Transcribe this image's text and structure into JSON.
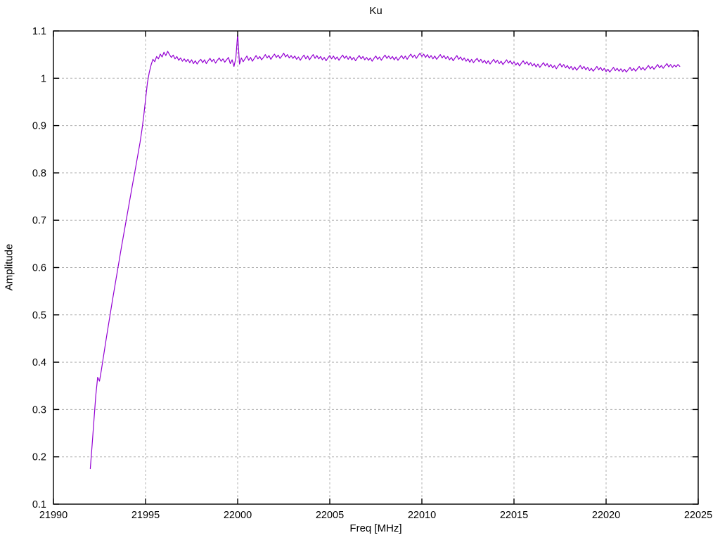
{
  "chart_data": {
    "type": "line",
    "title": "Ku",
    "xlabel": "Freq [MHz]",
    "ylabel": "Amplitude",
    "xlim": [
      21990,
      22025
    ],
    "ylim": [
      0.1,
      1.1
    ],
    "grid": true,
    "legend_position": "none",
    "x_ticks": [
      21990,
      21995,
      22000,
      22005,
      22010,
      22015,
      22020,
      22025
    ],
    "x_tick_labels": [
      "21990",
      "21995",
      "22000",
      "22005",
      "22010",
      "22015",
      "22020",
      "22025"
    ],
    "y_ticks": [
      0.1,
      0.2,
      0.3,
      0.4,
      0.5,
      0.6,
      0.7,
      0.8,
      0.9,
      1.0,
      1.1
    ],
    "y_tick_labels": [
      "0.1",
      "0.2",
      "0.3",
      "0.4",
      "0.5",
      "0.6",
      "0.7",
      "0.8",
      "0.9",
      "1",
      "1.1"
    ],
    "colors": {
      "line": "#9400d3",
      "grid": "#b0b0b0",
      "axis": "#000000",
      "background": "#ffffff"
    },
    "series": [
      {
        "name": "Ku",
        "color": "#9400d3",
        "x_start": 21992.0,
        "x_step": 0.1,
        "y_scale": 0.001,
        "y_milli": [
          175,
          225,
          278,
          330,
          368,
          360,
          383,
          408,
          433,
          458,
          482,
          506,
          530,
          553,
          576,
          599,
          622,
          645,
          667,
          689,
          711,
          733,
          755,
          777,
          798,
          820,
          842,
          864,
          890,
          920,
          955,
          990,
          1012,
          1028,
          1040,
          1035,
          1046,
          1041,
          1051,
          1045,
          1055,
          1048,
          1057,
          1050,
          1044,
          1049,
          1041,
          1046,
          1038,
          1043,
          1036,
          1041,
          1035,
          1040,
          1033,
          1039,
          1031,
          1037,
          1030,
          1036,
          1040,
          1033,
          1039,
          1031,
          1037,
          1042,
          1035,
          1040,
          1032,
          1038,
          1043,
          1036,
          1041,
          1034,
          1039,
          1044,
          1031,
          1039,
          1025,
          1042,
          1093,
          1030,
          1043,
          1035,
          1041,
          1047,
          1038,
          1044,
          1036,
          1042,
          1048,
          1041,
          1046,
          1039,
          1044,
          1050,
          1043,
          1048,
          1040,
          1046,
          1051,
          1044,
          1049,
          1042,
          1047,
          1053,
          1045,
          1050,
          1043,
          1048,
          1042,
          1047,
          1040,
          1045,
          1038,
          1044,
          1049,
          1041,
          1047,
          1039,
          1045,
          1050,
          1042,
          1048,
          1041,
          1046,
          1039,
          1044,
          1037,
          1043,
          1048,
          1041,
          1047,
          1040,
          1045,
          1038,
          1044,
          1049,
          1042,
          1047,
          1040,
          1046,
          1039,
          1044,
          1037,
          1043,
          1048,
          1041,
          1046,
          1039,
          1044,
          1038,
          1043,
          1036,
          1042,
          1047,
          1040,
          1045,
          1038,
          1044,
          1049,
          1042,
          1047,
          1041,
          1046,
          1039,
          1045,
          1038,
          1043,
          1048,
          1041,
          1047,
          1040,
          1046,
          1051,
          1044,
          1049,
          1042,
          1048,
          1053,
          1046,
          1051,
          1044,
          1050,
          1043,
          1048,
          1041,
          1047,
          1040,
          1045,
          1050,
          1043,
          1048,
          1041,
          1046,
          1039,
          1044,
          1037,
          1043,
          1048,
          1040,
          1045,
          1038,
          1043,
          1036,
          1041,
          1034,
          1040,
          1033,
          1038,
          1042,
          1035,
          1040,
          1033,
          1038,
          1031,
          1037,
          1030,
          1035,
          1040,
          1033,
          1038,
          1031,
          1036,
          1029,
          1034,
          1039,
          1032,
          1037,
          1030,
          1035,
          1028,
          1033,
          1026,
          1032,
          1037,
          1030,
          1035,
          1028,
          1033,
          1026,
          1031,
          1024,
          1030,
          1023,
          1028,
          1033,
          1026,
          1031,
          1024,
          1029,
          1022,
          1027,
          1020,
          1026,
          1031,
          1024,
          1029,
          1022,
          1027,
          1020,
          1025,
          1018,
          1024,
          1017,
          1022,
          1027,
          1020,
          1025,
          1018,
          1023,
          1016,
          1021,
          1015,
          1020,
          1025,
          1018,
          1023,
          1016,
          1021,
          1014,
          1019,
          1013,
          1018,
          1023,
          1016,
          1021,
          1015,
          1020,
          1014,
          1019,
          1013,
          1018,
          1023,
          1016,
          1021,
          1015,
          1020,
          1025,
          1018,
          1023,
          1017,
          1022,
          1027,
          1020,
          1025,
          1019,
          1024,
          1029,
          1022,
          1027,
          1021,
          1026,
          1031,
          1024,
          1029,
          1023,
          1028,
          1024,
          1029,
          1025
        ]
      }
    ]
  }
}
